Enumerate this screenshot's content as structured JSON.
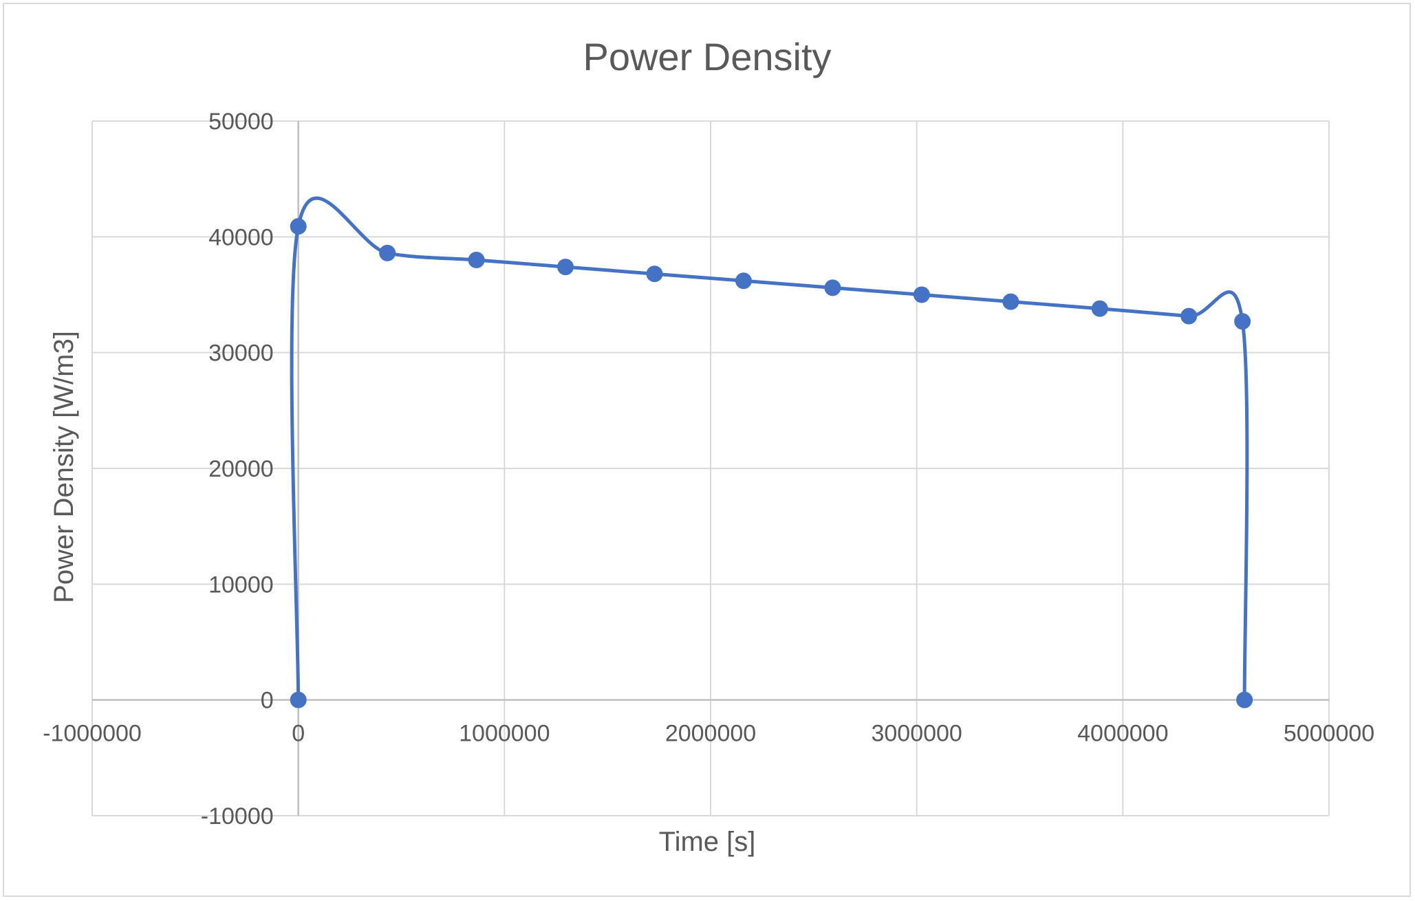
{
  "chart_data": {
    "type": "scatter",
    "title": "Power Density",
    "xlabel": "Time [s]",
    "ylabel": "Power Density [W/m3]",
    "xlim": [
      -1000000,
      5000000
    ],
    "ylim": [
      -10000,
      50000
    ],
    "x_ticks": [
      -1000000,
      0,
      1000000,
      2000000,
      3000000,
      4000000,
      5000000
    ],
    "y_ticks": [
      -10000,
      0,
      10000,
      20000,
      30000,
      40000,
      50000
    ],
    "x_tick_labels": [
      "-1000000",
      "0",
      "1000000",
      "2000000",
      "3000000",
      "4000000",
      "5000000"
    ],
    "y_tick_labels": [
      "-10000",
      "0",
      "10000",
      "20000",
      "30000",
      "40000",
      "50000"
    ],
    "grid": true,
    "smooth_line": true,
    "series": [
      {
        "color": "#4472c4",
        "x": [
          0,
          0,
          432000,
          864000,
          1296000,
          1728000,
          2160000,
          2592000,
          3024000,
          3456000,
          3888000,
          4320000,
          4580000,
          4590000
        ],
        "y": [
          0,
          40900,
          38600,
          38000,
          37400,
          36800,
          36200,
          35600,
          35000,
          34400,
          33800,
          33150,
          32700,
          0
        ]
      }
    ]
  }
}
